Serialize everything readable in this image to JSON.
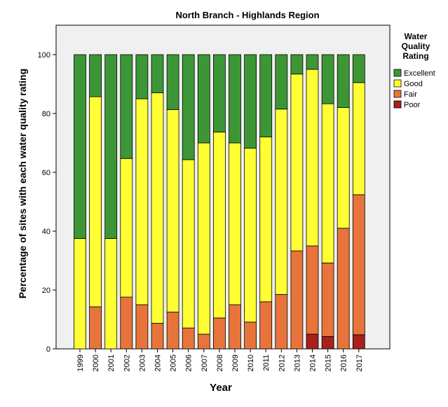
{
  "chart_data": {
    "type": "bar",
    "stacked": true,
    "title": "North Branch - Highlands Region",
    "xlabel": "Year",
    "ylabel": "Percentage of sites with each water quality rating",
    "ylim": [
      0,
      110
    ],
    "yticks": [
      0,
      20,
      40,
      60,
      80,
      100
    ],
    "grid": false,
    "legend_title": "Water Quality Rating",
    "legend_title_lines": [
      "Water",
      "Quality",
      "Rating"
    ],
    "legend_position": "right",
    "categories": [
      "1999",
      "2000",
      "2001",
      "2002",
      "2003",
      "2004",
      "2005",
      "2006",
      "2007",
      "2008",
      "2009",
      "2010",
      "2011",
      "2012",
      "2013",
      "2014",
      "2015",
      "2016",
      "2017"
    ],
    "series": [
      {
        "name": "Poor",
        "color": "#a8201a",
        "values": [
          0,
          0,
          0,
          0,
          0,
          0,
          0,
          0,
          0,
          0,
          0,
          0,
          0,
          0,
          0,
          5,
          4.2,
          0,
          4.8
        ]
      },
      {
        "name": "Fair",
        "color": "#e8743b",
        "values": [
          0,
          14.3,
          0,
          17.6,
          15,
          8.7,
          12.5,
          7.1,
          5,
          10.5,
          15,
          9.1,
          16,
          18.5,
          33.3,
          30,
          25,
          41,
          47.6
        ]
      },
      {
        "name": "Good",
        "color": "#ffff33",
        "values": [
          37.5,
          71.4,
          37.5,
          47.1,
          70,
          78.3,
          68.8,
          57.2,
          65,
          63.2,
          55,
          59.1,
          56,
          63,
          60.1,
          60,
          54.1,
          41,
          38.1
        ]
      },
      {
        "name": "Excellent",
        "color": "#3d9636",
        "values": [
          62.5,
          14.3,
          62.5,
          35.3,
          15,
          13,
          18.7,
          35.7,
          30,
          26.3,
          30,
          31.8,
          28,
          18.5,
          6.6,
          5,
          16.7,
          18,
          9.5
        ]
      }
    ],
    "legend_order": [
      "Excellent",
      "Good",
      "Fair",
      "Poor"
    ]
  }
}
